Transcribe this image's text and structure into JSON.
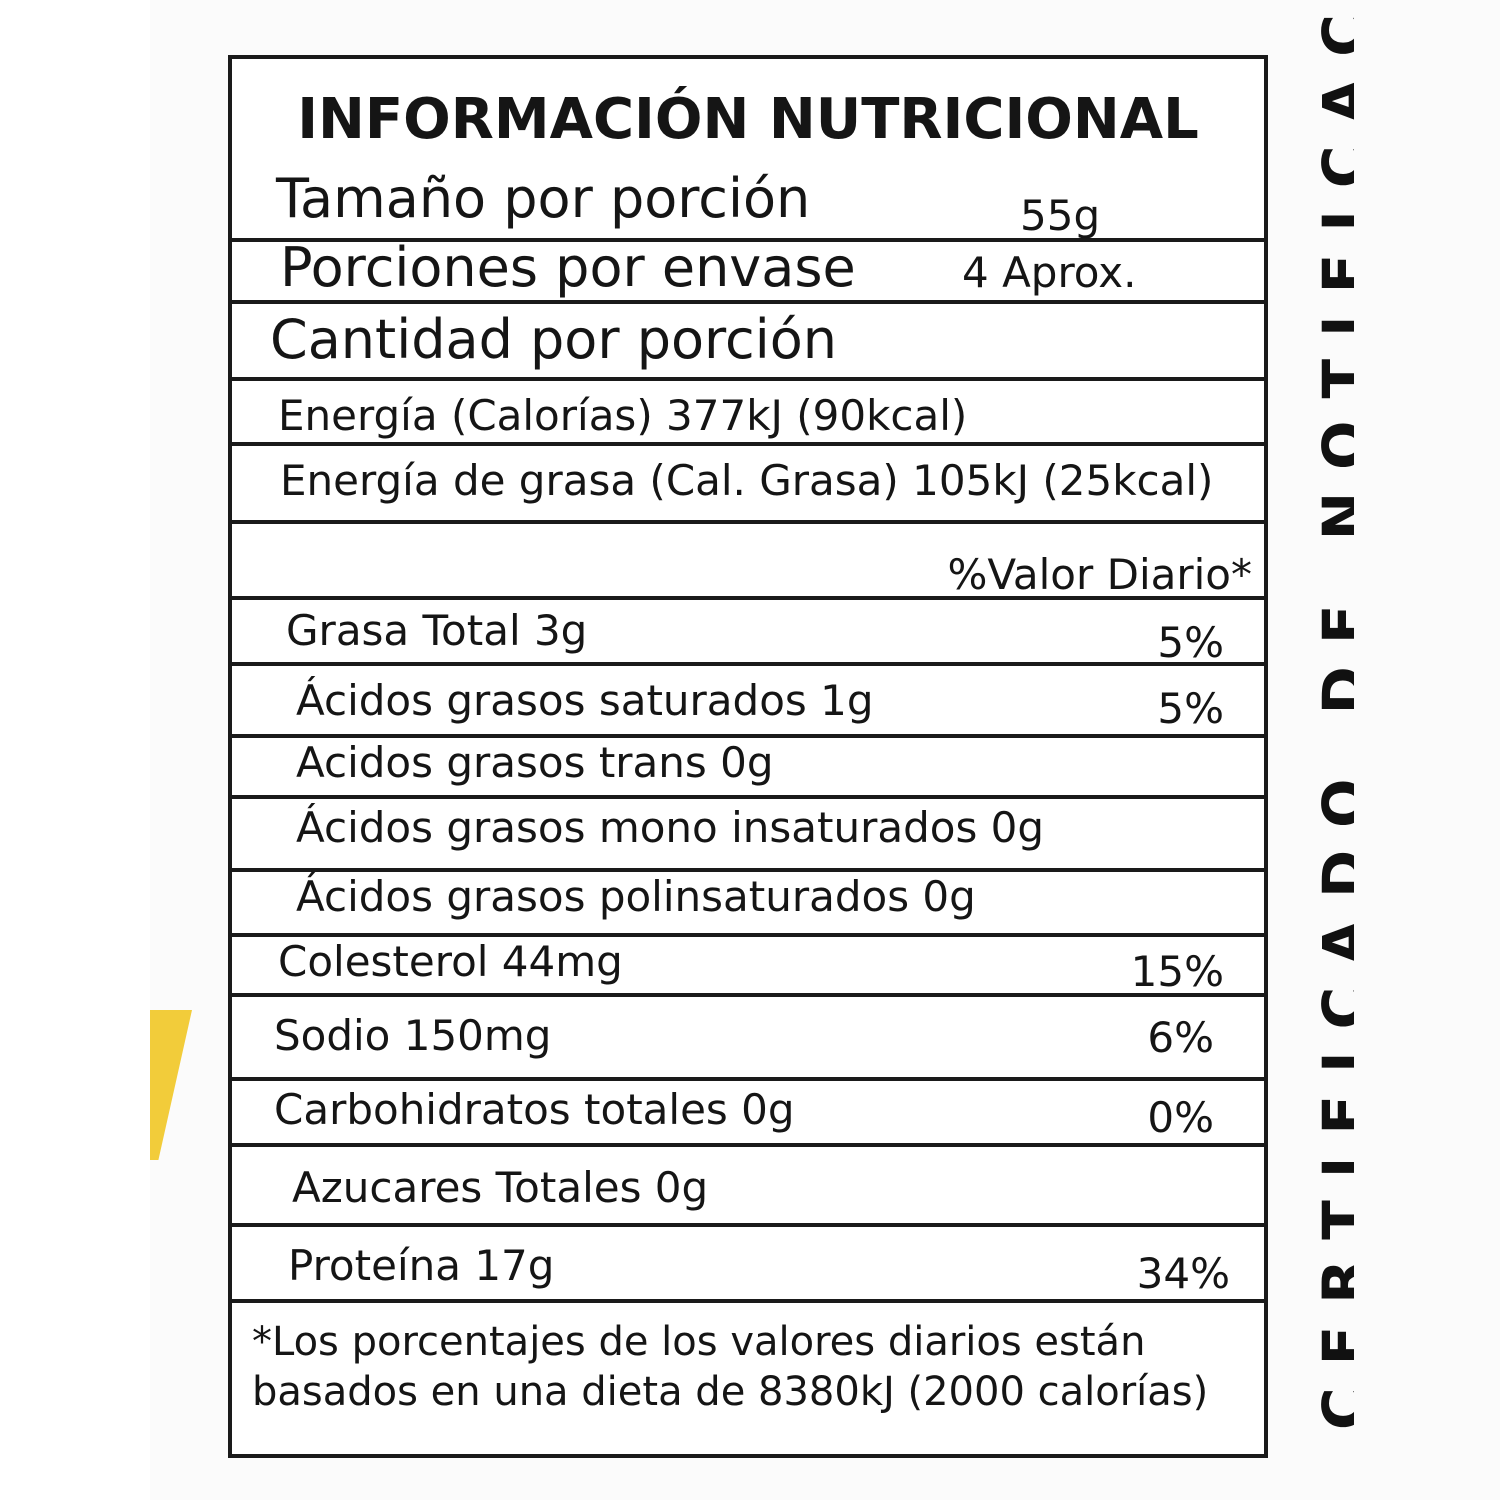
{
  "title": "INFORMACIÓN NUTRICIONAL",
  "serving_size": {
    "label": "Tamaño por porción",
    "value": "55g"
  },
  "servings_per_container": {
    "label": "Porciones por envase",
    "value": "4 Aprox."
  },
  "amount_per_serving": "Cantidad por porción",
  "energy": "Energía (Calorías) 377kJ (90kcal)",
  "fat_energy": "Energía de grasa (Cal. Grasa) 105kJ (25kcal)",
  "daily_value_header": "%Valor Diario*",
  "nutrients": [
    {
      "label": "Grasa Total 3g",
      "pct": "5%"
    },
    {
      "label": "Ácidos grasos saturados 1g",
      "pct": "5%"
    },
    {
      "label": "Acidos grasos trans 0g",
      "pct": ""
    },
    {
      "label": "Ácidos grasos mono insaturados 0g",
      "pct": ""
    },
    {
      "label": "Ácidos grasos polinsaturados 0g",
      "pct": ""
    },
    {
      "label": "Colesterol 44mg",
      "pct": "15%"
    },
    {
      "label": "Sodio 150mg",
      "pct": "6%"
    },
    {
      "label": "Carbohidratos totales 0g",
      "pct": "0%"
    },
    {
      "label": "Azucares Totales 0g",
      "pct": ""
    },
    {
      "label": "Proteína 17g",
      "pct": "34%"
    }
  ],
  "footnote": [
    "*Los porcentajes de los valores diarios están",
    "basados en una dieta de 8380kJ (2000 calorías)"
  ],
  "side_text": "CERTIFICADO DE NOTIFICACIÓN"
}
